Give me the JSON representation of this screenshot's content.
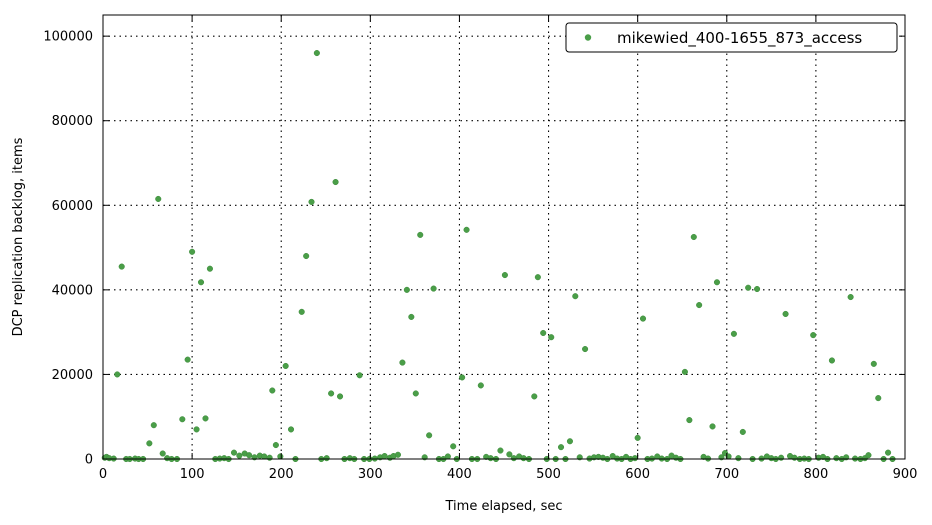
{
  "chart_data": {
    "type": "scatter",
    "title": "",
    "xlabel": "Time elapsed, sec",
    "ylabel": "DCP replication backlog, items",
    "xlim": [
      0,
      900
    ],
    "ylim": [
      0,
      105000
    ],
    "xticks": [
      0,
      100,
      200,
      300,
      400,
      500,
      600,
      700,
      800,
      900
    ],
    "yticks": [
      0,
      20000,
      40000,
      60000,
      80000,
      100000
    ],
    "grid": true,
    "legend_position": "top-right",
    "color": "#4a9e48",
    "series": [
      {
        "name": "mikewied_400-1655_873_access",
        "points": [
          [
            2,
            300
          ],
          [
            4,
            500
          ],
          [
            7,
            200
          ],
          [
            12,
            100
          ],
          [
            16,
            20000
          ],
          [
            21,
            45500
          ],
          [
            26,
            0
          ],
          [
            30,
            0
          ],
          [
            36,
            100
          ],
          [
            40,
            0
          ],
          [
            45,
            0
          ],
          [
            52,
            3700
          ],
          [
            57,
            8000
          ],
          [
            62,
            61500
          ],
          [
            67,
            1300
          ],
          [
            72,
            200
          ],
          [
            77,
            0
          ],
          [
            83,
            0
          ],
          [
            89,
            9400
          ],
          [
            95,
            23500
          ],
          [
            100,
            49000
          ],
          [
            105,
            7000
          ],
          [
            110,
            41800
          ],
          [
            115,
            9600
          ],
          [
            120,
            45000
          ],
          [
            126,
            0
          ],
          [
            131,
            100
          ],
          [
            136,
            200
          ],
          [
            141,
            0
          ],
          [
            147,
            1500
          ],
          [
            153,
            800
          ],
          [
            159,
            1300
          ],
          [
            164,
            900
          ],
          [
            170,
            400
          ],
          [
            176,
            800
          ],
          [
            181,
            600
          ],
          [
            187,
            300
          ],
          [
            190,
            16200
          ],
          [
            194,
            3300
          ],
          [
            199,
            600
          ],
          [
            205,
            22000
          ],
          [
            211,
            7000
          ],
          [
            216,
            0
          ],
          [
            223,
            34800
          ],
          [
            228,
            48000
          ],
          [
            234,
            60800
          ],
          [
            240,
            96000
          ],
          [
            245,
            0
          ],
          [
            251,
            200
          ],
          [
            256,
            15500
          ],
          [
            261,
            65500
          ],
          [
            266,
            14800
          ],
          [
            271,
            0
          ],
          [
            277,
            200
          ],
          [
            282,
            0
          ],
          [
            288,
            19800
          ],
          [
            293,
            0
          ],
          [
            299,
            0
          ],
          [
            305,
            100
          ],
          [
            311,
            400
          ],
          [
            316,
            700
          ],
          [
            322,
            300
          ],
          [
            326,
            700
          ],
          [
            331,
            1000
          ],
          [
            336,
            22800
          ],
          [
            341,
            40000
          ],
          [
            346,
            33600
          ],
          [
            351,
            15500
          ],
          [
            356,
            53000
          ],
          [
            361,
            400
          ],
          [
            366,
            5600
          ],
          [
            371,
            40300
          ],
          [
            377,
            0
          ],
          [
            382,
            0
          ],
          [
            387,
            600
          ],
          [
            393,
            3000
          ],
          [
            397,
            0
          ],
          [
            403,
            19300
          ],
          [
            408,
            54200
          ],
          [
            414,
            0
          ],
          [
            420,
            0
          ],
          [
            424,
            17400
          ],
          [
            430,
            500
          ],
          [
            435,
            200
          ],
          [
            441,
            0
          ],
          [
            446,
            2000
          ],
          [
            451,
            43500
          ],
          [
            456,
            1100
          ],
          [
            461,
            200
          ],
          [
            467,
            600
          ],
          [
            472,
            200
          ],
          [
            478,
            0
          ],
          [
            484,
            14800
          ],
          [
            488,
            43000
          ],
          [
            494,
            29800
          ],
          [
            498,
            0
          ],
          [
            503,
            28800
          ],
          [
            508,
            0
          ],
          [
            514,
            2800
          ],
          [
            519,
            0
          ],
          [
            524,
            4200
          ],
          [
            530,
            38500
          ],
          [
            535,
            400
          ],
          [
            541,
            26000
          ],
          [
            546,
            100
          ],
          [
            551,
            400
          ],
          [
            556,
            500
          ],
          [
            561,
            300
          ],
          [
            566,
            0
          ],
          [
            572,
            700
          ],
          [
            577,
            100
          ],
          [
            582,
            0
          ],
          [
            587,
            500
          ],
          [
            592,
            0
          ],
          [
            597,
            200
          ],
          [
            600,
            5000
          ],
          [
            606,
            33200
          ],
          [
            611,
            0
          ],
          [
            616,
            100
          ],
          [
            622,
            600
          ],
          [
            627,
            100
          ],
          [
            633,
            0
          ],
          [
            638,
            800
          ],
          [
            643,
            300
          ],
          [
            648,
            0
          ],
          [
            653,
            20600
          ],
          [
            658,
            9200
          ],
          [
            663,
            52500
          ],
          [
            669,
            36400
          ],
          [
            674,
            500
          ],
          [
            679,
            100
          ],
          [
            684,
            7700
          ],
          [
            689,
            41800
          ],
          [
            694,
            400
          ],
          [
            698,
            1400
          ],
          [
            702,
            600
          ],
          [
            708,
            29600
          ],
          [
            713,
            200
          ],
          [
            718,
            6400
          ],
          [
            724,
            40500
          ],
          [
            729,
            0
          ],
          [
            734,
            40200
          ],
          [
            739,
            100
          ],
          [
            745,
            600
          ],
          [
            750,
            200
          ],
          [
            755,
            0
          ],
          [
            761,
            300
          ],
          [
            766,
            34300
          ],
          [
            771,
            700
          ],
          [
            776,
            300
          ],
          [
            782,
            0
          ],
          [
            787,
            100
          ],
          [
            792,
            0
          ],
          [
            797,
            29300
          ],
          [
            803,
            300
          ],
          [
            808,
            500
          ],
          [
            813,
            0
          ],
          [
            818,
            23300
          ],
          [
            823,
            200
          ],
          [
            829,
            0
          ],
          [
            834,
            400
          ],
          [
            839,
            38300
          ],
          [
            844,
            100
          ],
          [
            850,
            0
          ],
          [
            855,
            200
          ],
          [
            859,
            900
          ],
          [
            865,
            22500
          ],
          [
            870,
            14400
          ],
          [
            876,
            0
          ],
          [
            881,
            1500
          ],
          [
            886,
            0
          ]
        ]
      }
    ]
  }
}
